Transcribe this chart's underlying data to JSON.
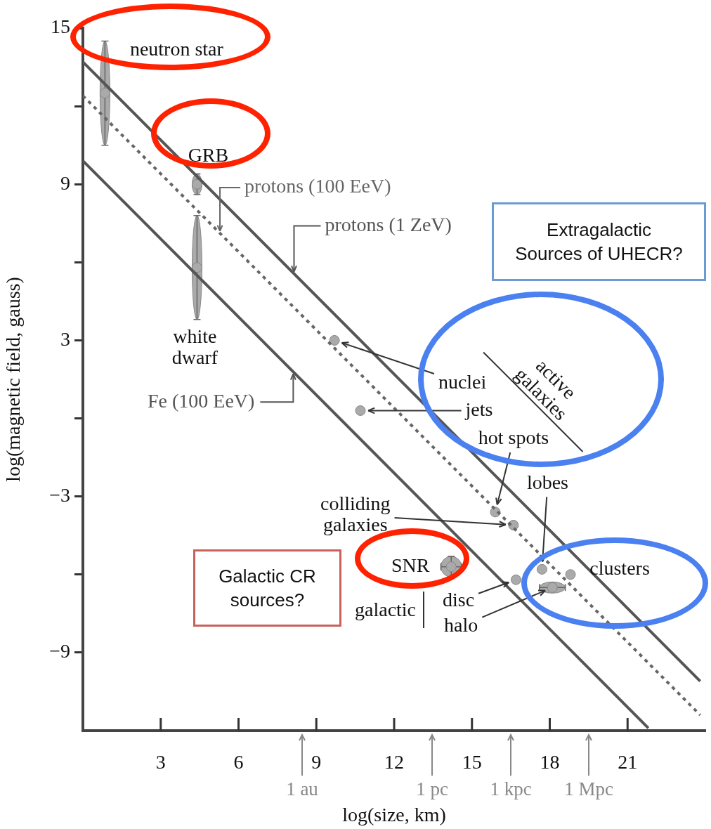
{
  "chart_data": {
    "type": "scatter",
    "xlabel": "log(size, km)",
    "ylabel": "log(magnetic field, gauss)",
    "xlim": [
      0,
      24
    ],
    "ylim": [
      -12,
      15
    ],
    "xticks": [
      3,
      6,
      9,
      12,
      15,
      18,
      21
    ],
    "yticks": [
      15,
      {
        "value": 12,
        "label": null
      },
      9,
      {
        "value": 6,
        "label": null
      },
      3,
      {
        "value": 0,
        "label": null
      },
      {
        "value": -3,
        "label": "−3"
      },
      {
        "value": -6,
        "label": null
      },
      {
        "value": -9,
        "label": "−9"
      }
    ],
    "marker": "circle",
    "series": [
      {
        "type": "line",
        "name": "protons (1 ZeV)",
        "color": "#555555",
        "line_style": "solid",
        "marker": "none",
        "x": [
          0,
          23.8
        ],
        "values": [
          13.7,
          -10.1
        ]
      },
      {
        "type": "line",
        "name": "protons (100 EeV)",
        "color": "#666666",
        "line_style": "dotted",
        "marker": "none",
        "x": [
          0,
          23.8
        ],
        "values": [
          12.4,
          -11.4
        ]
      },
      {
        "type": "line",
        "name": "Fe (100 EeV)",
        "color": "#555555",
        "line_style": "solid",
        "marker": "none",
        "x": [
          0,
          21.8
        ],
        "values": [
          9.9,
          -11.9
        ]
      },
      {
        "type": "scatter",
        "name": "neutron star",
        "color": "#aaaaaa",
        "x": [
          0.85
        ],
        "values": [
          12.5
        ],
        "errors": [
          [
            10.5,
            14.5
          ]
        ]
      },
      {
        "type": "scatter",
        "name": "GRB",
        "color": "#aaaaaa",
        "x": [
          4.4
        ],
        "values": [
          9.0
        ],
        "errors": [
          [
            8.6,
            9.4
          ]
        ]
      },
      {
        "type": "scatter",
        "name": "white dwarf",
        "color": "#aaaaaa",
        "x": [
          4.4
        ],
        "values": [
          5.8
        ],
        "errors": [
          [
            3.8,
            7.8
          ]
        ]
      },
      {
        "type": "scatter",
        "name": "nuclei",
        "color": "#aaaaaa",
        "x": [
          9.7
        ],
        "values": [
          3.0
        ]
      },
      {
        "type": "scatter",
        "name": "jets",
        "color": "#aaaaaa",
        "x": [
          10.7
        ],
        "values": [
          0.3
        ]
      },
      {
        "type": "scatter",
        "name": "hot spots",
        "color": "#aaaaaa",
        "x": [
          15.9
        ],
        "values": [
          -3.6
        ]
      },
      {
        "type": "scatter",
        "name": "colliding galaxies",
        "color": "#aaaaaa",
        "x": [
          16.6
        ],
        "values": [
          -4.1
        ]
      },
      {
        "type": "scatter",
        "name": "SNR",
        "color": "#aaaaaa",
        "x": [
          14.2
        ],
        "values": [
          -5.7
        ],
        "errors": [
          [
            -6.1,
            -5.3
          ]
        ],
        "xerrors": [
          [
            13.8,
            14.6
          ]
        ]
      },
      {
        "type": "scatter",
        "name": "lobes",
        "color": "#aaaaaa",
        "x": [
          17.7
        ],
        "values": [
          -5.8
        ]
      },
      {
        "type": "scatter",
        "name": "disc",
        "color": "#aaaaaa",
        "x": [
          16.7
        ],
        "values": [
          -6.2
        ]
      },
      {
        "type": "scatter",
        "name": "halo",
        "color": "#aaaaaa",
        "x": [
          18.1
        ],
        "values": [
          -6.5
        ],
        "xerrors": [
          [
            17.6,
            18.6
          ]
        ]
      },
      {
        "type": "scatter",
        "name": "clusters",
        "color": "#aaaaaa",
        "x": [
          18.8
        ],
        "values": [
          -6.0
        ]
      }
    ],
    "annotations": [
      "galactic",
      "active galaxies",
      "Extragalactic Sources of UHECR?",
      "Galactic CR sources?",
      "1 au",
      "1 pc",
      "1 kpc",
      "1 Mpc"
    ]
  }
}
